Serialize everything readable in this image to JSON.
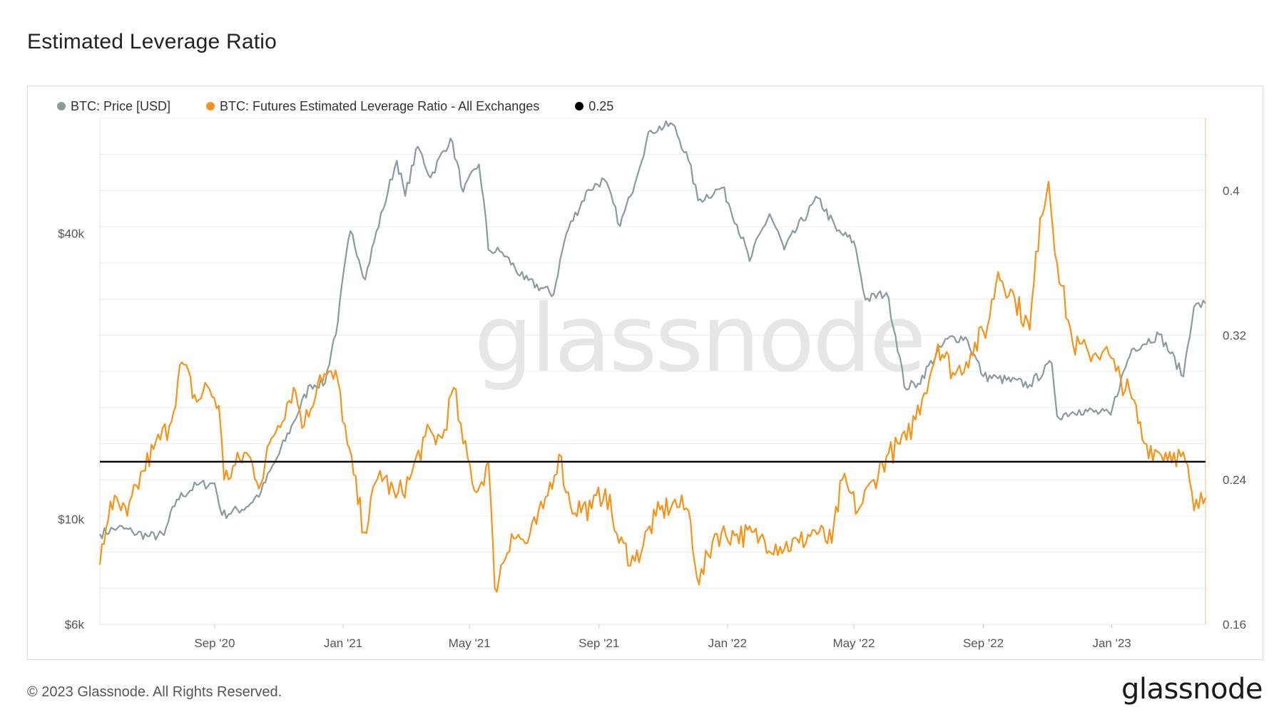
{
  "title": "Estimated Leverage Ratio",
  "footer": {
    "copyright": "© 2023 Glassnode. All Rights Reserved.",
    "logo": "glassnode"
  },
  "watermark": "glassnode",
  "colors": {
    "price": "#8a9a9d",
    "leverage": "#f7931a",
    "threshold": "#000000",
    "grid": "#ececec",
    "right_axis": "#f7c98a"
  },
  "chart_data": {
    "type": "line",
    "x_ticks": [
      "Sep '20",
      "Jan '21",
      "May '21",
      "Sep '21",
      "Jan '22",
      "May '22",
      "Sep '22",
      "Jan '23"
    ],
    "x_tick_dates": [
      "2020-09-01",
      "2021-01-01",
      "2021-05-01",
      "2021-09-01",
      "2022-01-01",
      "2022-05-01",
      "2022-09-01",
      "2023-01-01"
    ],
    "x_range": [
      "2020-05-15",
      "2023-03-31"
    ],
    "y_left": {
      "scale": "log",
      "range": [
        6000,
        70000
      ],
      "ticks": [
        6000,
        10000,
        40000
      ],
      "tick_labels": [
        "$6k",
        "$10k",
        "$40k"
      ]
    },
    "y_right": {
      "scale": "linear",
      "range": [
        0.16,
        0.44
      ],
      "ticks": [
        0.16,
        0.24,
        0.32,
        0.4
      ],
      "tick_labels": [
        "0.16",
        "0.24",
        "0.32",
        "0.4"
      ]
    },
    "legend_position": "top-left",
    "series": [
      {
        "name": "BTC: Price [USD]",
        "axis": "left",
        "points": [
          [
            "2020-05-15",
            9300
          ],
          [
            "2020-06-01",
            9600
          ],
          [
            "2020-06-15",
            9400
          ],
          [
            "2020-07-01",
            9200
          ],
          [
            "2020-07-15",
            9250
          ],
          [
            "2020-07-27",
            11000
          ],
          [
            "2020-08-15",
            11800
          ],
          [
            "2020-09-01",
            11900
          ],
          [
            "2020-09-08",
            10200
          ],
          [
            "2020-10-01",
            10600
          ],
          [
            "2020-10-15",
            11400
          ],
          [
            "2020-11-01",
            13700
          ],
          [
            "2020-11-15",
            16000
          ],
          [
            "2020-12-01",
            19200
          ],
          [
            "2020-12-15",
            19400
          ],
          [
            "2020-12-27",
            26000
          ],
          [
            "2021-01-08",
            40500
          ],
          [
            "2021-01-22",
            32000
          ],
          [
            "2021-02-08",
            45000
          ],
          [
            "2021-02-21",
            57000
          ],
          [
            "2021-03-01",
            48000
          ],
          [
            "2021-03-13",
            61000
          ],
          [
            "2021-03-25",
            52500
          ],
          [
            "2021-04-13",
            63500
          ],
          [
            "2021-04-25",
            49000
          ],
          [
            "2021-05-10",
            56000
          ],
          [
            "2021-05-19",
            37000
          ],
          [
            "2021-06-01",
            36500
          ],
          [
            "2021-06-22",
            32000
          ],
          [
            "2021-07-20",
            29800
          ],
          [
            "2021-08-01",
            40000
          ],
          [
            "2021-08-22",
            49500
          ],
          [
            "2021-09-06",
            52000
          ],
          [
            "2021-09-21",
            41500
          ],
          [
            "2021-10-01",
            48000
          ],
          [
            "2021-10-20",
            66000
          ],
          [
            "2021-11-10",
            68000
          ],
          [
            "2021-11-25",
            57000
          ],
          [
            "2021-12-04",
            47000
          ],
          [
            "2021-12-27",
            50000
          ],
          [
            "2022-01-22",
            35000
          ],
          [
            "2022-02-10",
            44000
          ],
          [
            "2022-02-24",
            37000
          ],
          [
            "2022-03-28",
            47500
          ],
          [
            "2022-04-15",
            40500
          ],
          [
            "2022-05-01",
            38500
          ],
          [
            "2022-05-12",
            29000
          ],
          [
            "2022-06-01",
            30000
          ],
          [
            "2022-06-18",
            19000
          ],
          [
            "2022-07-01",
            19300
          ],
          [
            "2022-07-29",
            24000
          ],
          [
            "2022-08-15",
            24200
          ],
          [
            "2022-09-01",
            20000
          ],
          [
            "2022-09-15",
            19800
          ],
          [
            "2022-10-15",
            19200
          ],
          [
            "2022-11-05",
            21300
          ],
          [
            "2022-11-10",
            16500
          ],
          [
            "2022-12-01",
            17000
          ],
          [
            "2022-12-31",
            16600
          ],
          [
            "2023-01-20",
            22800
          ],
          [
            "2023-02-15",
            24500
          ],
          [
            "2023-03-10",
            20000
          ],
          [
            "2023-03-20",
            28000
          ],
          [
            "2023-03-31",
            28500
          ]
        ]
      },
      {
        "name": "BTC: Futures Estimated Leverage Ratio - All Exchanges",
        "axis": "right",
        "points": [
          [
            "2020-05-15",
            0.193
          ],
          [
            "2020-05-25",
            0.228
          ],
          [
            "2020-06-10",
            0.22
          ],
          [
            "2020-06-25",
            0.245
          ],
          [
            "2020-07-05",
            0.257
          ],
          [
            "2020-07-20",
            0.27
          ],
          [
            "2020-08-01",
            0.305
          ],
          [
            "2020-08-15",
            0.283
          ],
          [
            "2020-08-25",
            0.292
          ],
          [
            "2020-09-05",
            0.281
          ],
          [
            "2020-09-10",
            0.24
          ],
          [
            "2020-10-01",
            0.255
          ],
          [
            "2020-10-15",
            0.238
          ],
          [
            "2020-10-25",
            0.263
          ],
          [
            "2020-11-15",
            0.291
          ],
          [
            "2020-11-25",
            0.27
          ],
          [
            "2020-12-10",
            0.298
          ],
          [
            "2020-12-27",
            0.295
          ],
          [
            "2021-01-05",
            0.26
          ],
          [
            "2021-01-21",
            0.211
          ],
          [
            "2021-02-05",
            0.245
          ],
          [
            "2021-02-20",
            0.23
          ],
          [
            "2021-03-05",
            0.24
          ],
          [
            "2021-03-20",
            0.264
          ],
          [
            "2021-04-05",
            0.263
          ],
          [
            "2021-04-16",
            0.291
          ],
          [
            "2021-04-25",
            0.26
          ],
          [
            "2021-05-08",
            0.233
          ],
          [
            "2021-05-19",
            0.25
          ],
          [
            "2021-05-25",
            0.18
          ],
          [
            "2021-06-10",
            0.21
          ],
          [
            "2021-06-25",
            0.205
          ],
          [
            "2021-07-10",
            0.224
          ],
          [
            "2021-07-25",
            0.254
          ],
          [
            "2021-08-05",
            0.225
          ],
          [
            "2021-08-25",
            0.224
          ],
          [
            "2021-09-07",
            0.235
          ],
          [
            "2021-09-20",
            0.205
          ],
          [
            "2021-10-05",
            0.195
          ],
          [
            "2021-10-25",
            0.22
          ],
          [
            "2021-11-10",
            0.227
          ],
          [
            "2021-11-25",
            0.223
          ],
          [
            "2021-12-05",
            0.182
          ],
          [
            "2021-12-20",
            0.21
          ],
          [
            "2022-01-10",
            0.21
          ],
          [
            "2022-02-01",
            0.208
          ],
          [
            "2022-02-20",
            0.203
          ],
          [
            "2022-03-10",
            0.205
          ],
          [
            "2022-03-25",
            0.212
          ],
          [
            "2022-04-10",
            0.205
          ],
          [
            "2022-04-20",
            0.24
          ],
          [
            "2022-05-05",
            0.223
          ],
          [
            "2022-05-20",
            0.24
          ],
          [
            "2022-06-01",
            0.253
          ],
          [
            "2022-06-20",
            0.262
          ],
          [
            "2022-07-05",
            0.285
          ],
          [
            "2022-07-20",
            0.315
          ],
          [
            "2022-08-05",
            0.298
          ],
          [
            "2022-08-20",
            0.31
          ],
          [
            "2022-09-05",
            0.325
          ],
          [
            "2022-09-15",
            0.355
          ],
          [
            "2022-10-01",
            0.34
          ],
          [
            "2022-10-15",
            0.323
          ],
          [
            "2022-10-25",
            0.385
          ],
          [
            "2022-11-02",
            0.405
          ],
          [
            "2022-11-10",
            0.36
          ],
          [
            "2022-11-25",
            0.315
          ],
          [
            "2022-12-10",
            0.31
          ],
          [
            "2022-12-25",
            0.312
          ],
          [
            "2023-01-05",
            0.3
          ],
          [
            "2023-01-20",
            0.285
          ],
          [
            "2023-02-01",
            0.26
          ],
          [
            "2023-02-15",
            0.255
          ],
          [
            "2023-03-01",
            0.255
          ],
          [
            "2023-03-12",
            0.25
          ],
          [
            "2023-03-20",
            0.223
          ],
          [
            "2023-03-31",
            0.23
          ]
        ]
      },
      {
        "name": "0.25",
        "axis": "right",
        "constant": 0.25
      }
    ]
  }
}
